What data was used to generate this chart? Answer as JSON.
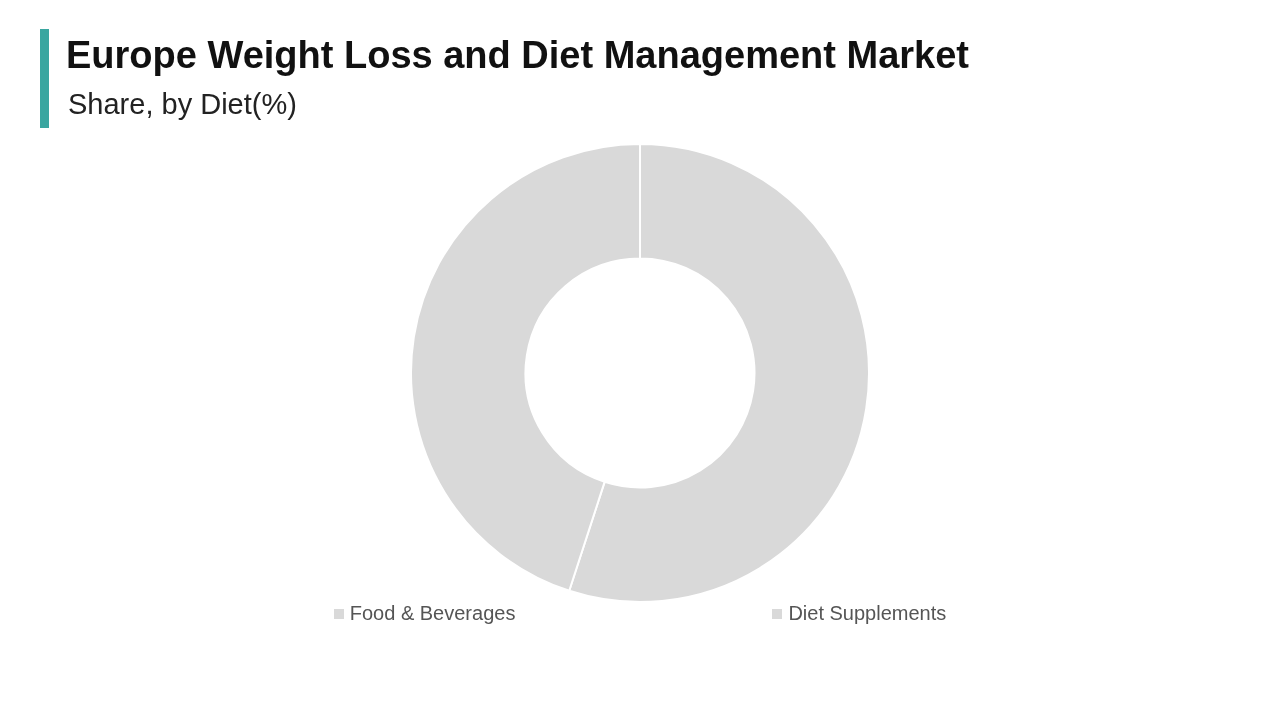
{
  "chart_data": {
    "type": "donut",
    "title": "Europe Weight Loss and Diet Management Market",
    "subtitle": "Share, by Diet(%)",
    "categories": [
      "Food & Beverages",
      "Diet Supplements"
    ],
    "values": [
      55,
      45
    ],
    "colors": [
      "#d9d9d9",
      "#d9d9d9"
    ],
    "legend": "bottom"
  }
}
